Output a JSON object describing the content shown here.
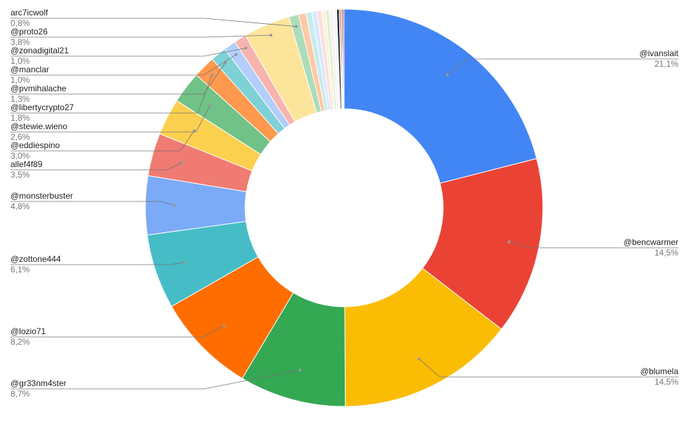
{
  "chart_data": {
    "type": "pie",
    "donut": true,
    "title": "",
    "series": [
      {
        "values_percent": [
          21.1,
          14.5,
          14.5,
          8.7,
          8.2,
          6.1,
          4.8,
          3.5,
          3.0,
          2.6,
          1.8,
          1.3,
          1.0,
          1.0,
          3.8,
          0.8,
          0.6,
          0.5,
          0.4,
          0.4,
          0.3,
          0.3,
          0.3,
          0.3,
          0.2,
          0.1,
          0.1,
          0.1,
          0.1
        ]
      }
    ],
    "categories": [
      "@ivanslait",
      "@bencwarmer",
      "@blumela",
      "@gr33nm4ster",
      "@lozio71",
      "@zottone444",
      "@monsterbuster",
      "allef4f89",
      "@eddiespino",
      "@stewie.wieno",
      "@libertycrypto27",
      "@pvmihalache",
      "@manclar",
      "@zonadigital21",
      "@proto26",
      "arc7icwolf",
      "",
      "",
      "",
      "",
      "",
      "",
      "",
      "",
      "",
      "",
      "",
      "",
      ""
    ],
    "slice_colors": [
      "#4285f4",
      "#ea4335",
      "#fbbc04",
      "#34a853",
      "#ff6d01",
      "#46bdc6",
      "#7baaf7",
      "#f07b72",
      "#fcd04f",
      "#71c287",
      "#ff994d",
      "#7ed1d7",
      "#b3cefb",
      "#f7b4ae",
      "#fde49b",
      "#aedcba",
      "#ffc9a3",
      "#c8ecee",
      "#d9e7fd",
      "#fbe0de",
      "#fef3d0",
      "#dbf0e0",
      "#fff0e6",
      "#eef9fa",
      "#202124",
      "#5f6368",
      "#e8453c",
      "#3c4043",
      "#b31412"
    ],
    "labels": [
      {
        "index": 0,
        "name": "@ivanslait",
        "pct": "21,1%",
        "side": "right"
      },
      {
        "index": 1,
        "name": "@bencwarmer",
        "pct": "14,5%",
        "side": "right"
      },
      {
        "index": 2,
        "name": "@blumela",
        "pct": "14,5%",
        "side": "right"
      },
      {
        "index": 3,
        "name": "@gr33nm4ster",
        "pct": "8,7%",
        "side": "left"
      },
      {
        "index": 4,
        "name": "@lozio71",
        "pct": "8,2%",
        "side": "left"
      },
      {
        "index": 5,
        "name": "@zottone444",
        "pct": "6,1%",
        "side": "left"
      },
      {
        "index": 6,
        "name": "@monsterbuster",
        "pct": "4,8%",
        "side": "left"
      },
      {
        "index": 7,
        "name": "allef4f89",
        "pct": "3,5%",
        "side": "left"
      },
      {
        "index": 8,
        "name": "@eddiespino",
        "pct": "3,0%",
        "side": "left"
      },
      {
        "index": 9,
        "name": "@stewie.wieno",
        "pct": "2,6%",
        "side": "left"
      },
      {
        "index": 10,
        "name": "@libertycrypto27",
        "pct": "1,8%",
        "side": "left"
      },
      {
        "index": 11,
        "name": "@pvmihalache",
        "pct": "1,3%",
        "side": "left"
      },
      {
        "index": 12,
        "name": "@manclar",
        "pct": "1,0%",
        "side": "left"
      },
      {
        "index": 13,
        "name": "@zonadigital21",
        "pct": "1,0%",
        "side": "left"
      },
      {
        "index": 14,
        "name": "@proto26",
        "pct": "3,8%",
        "side": "left"
      },
      {
        "index": 15,
        "name": "arc7icwolf",
        "pct": "0,8%",
        "side": "left"
      }
    ],
    "legend": "none",
    "grid": false
  }
}
